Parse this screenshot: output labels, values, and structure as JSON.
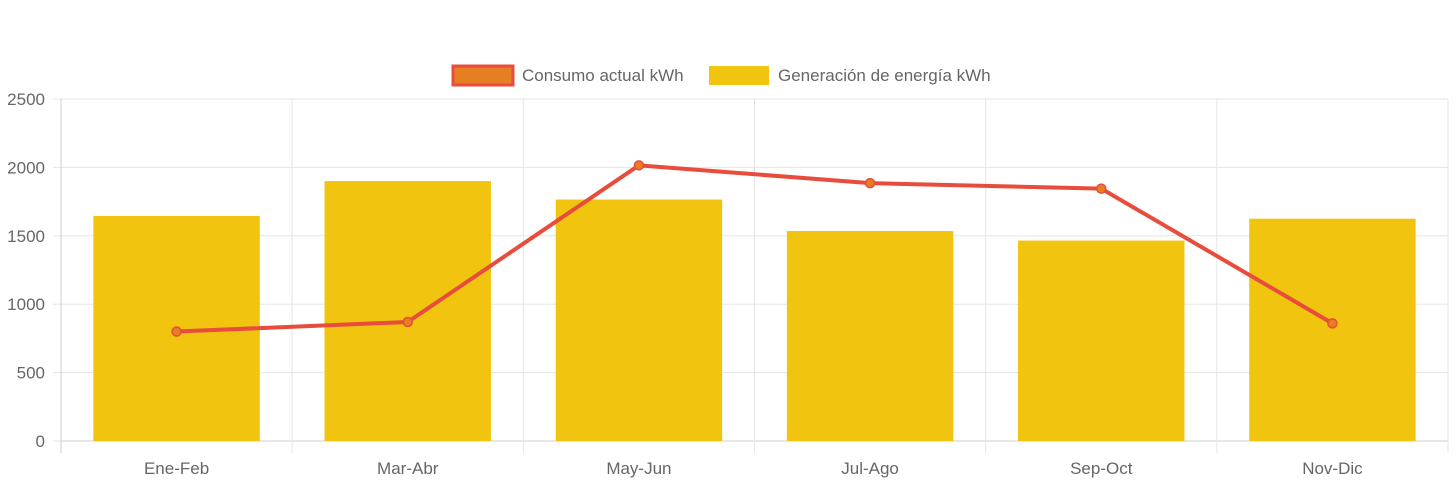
{
  "chart_data": {
    "type": "bar",
    "categories": [
      "Ene-Feb",
      "Mar-Abr",
      "May-Jun",
      "Jul-Ago",
      "Sep-Oct",
      "Nov-Dic"
    ],
    "series": [
      {
        "name": "Consumo actual kWh",
        "type": "line",
        "values": [
          800,
          870,
          2015,
          1885,
          1845,
          860
        ],
        "color": "#e74c3c",
        "fill": "#e67e22"
      },
      {
        "name": "Generación de energía kWh",
        "type": "bar",
        "values": [
          1645,
          1900,
          1765,
          1535,
          1465,
          1625
        ],
        "color": "#f1c40f"
      }
    ],
    "ylim": [
      0,
      2500
    ],
    "yticks": [
      "0",
      "500",
      "1000",
      "1500",
      "2000",
      "2500"
    ],
    "grid": true,
    "legend": "top-center"
  }
}
